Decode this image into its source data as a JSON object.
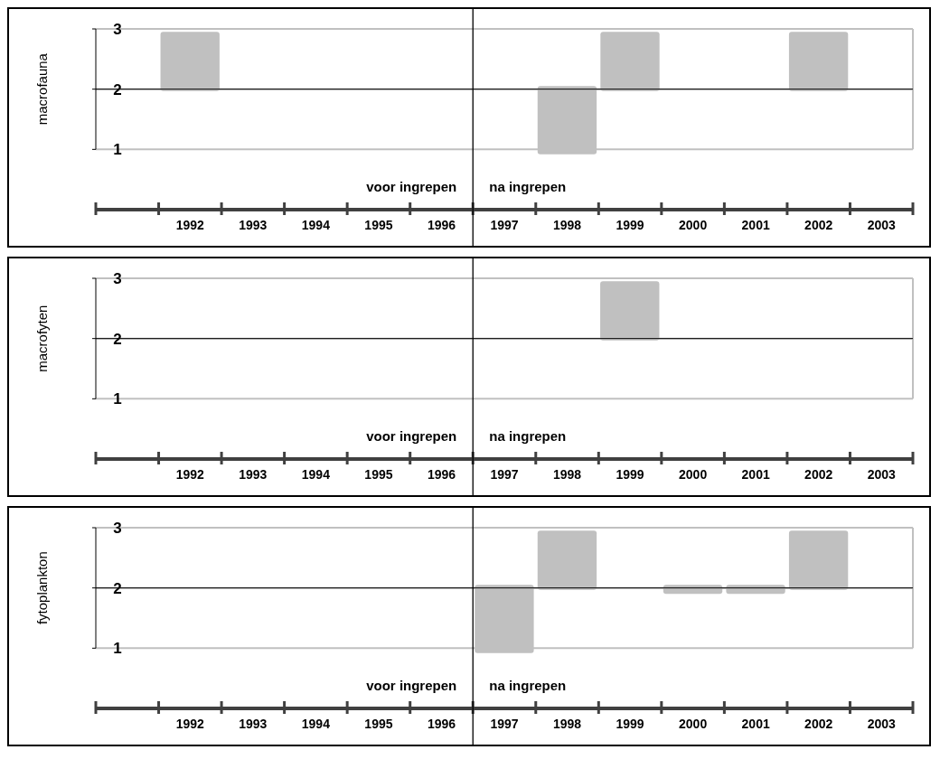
{
  "chart_data": [
    {
      "type": "bar",
      "ylabel": "macrofauna",
      "x": [
        1992,
        1998,
        1999,
        2002
      ],
      "values": [
        0.98,
        1.13,
        0.98,
        0.98
      ],
      "base": [
        1.97,
        0.92,
        1.97,
        1.97
      ],
      "color": "#c0c0c0",
      "xlim": [
        1990.5,
        2003.5
      ],
      "xticks": [
        {
          "value": 1990.5,
          "label": null
        },
        {
          "value": 1991.5,
          "label": null
        },
        {
          "value": 1992.5,
          "label": null
        },
        {
          "value": 1993.5,
          "label": null
        },
        {
          "value": 1994.5,
          "label": null
        },
        {
          "value": 1995.5,
          "label": null
        },
        {
          "value": 1996.5,
          "label": null
        },
        {
          "value": 1997.5,
          "label": null
        },
        {
          "value": 1998.5,
          "label": null
        },
        {
          "value": 1999.5,
          "label": null
        },
        {
          "value": 2000.5,
          "label": null
        },
        {
          "value": 2001.5,
          "label": null
        },
        {
          "value": 2002.5,
          "label": null
        },
        {
          "value": 2003.5,
          "label": null
        },
        1992,
        1993,
        1994,
        1995,
        1996,
        1997,
        1998,
        1999,
        2000,
        2001,
        2002,
        2003
      ],
      "ylim": [
        0,
        3
      ],
      "yticks": [
        1,
        2,
        3
      ],
      "grid": "y",
      "ref_lines": [
        {
          "axis": "x",
          "value": 1996.5,
          "color": "#000000"
        },
        {
          "axis": "y",
          "value": 2,
          "color": "#000000"
        }
      ],
      "annotations": [
        "voor ingrepen",
        "na ingrepen"
      ]
    },
    {
      "type": "bar",
      "ylabel": "macrofyten",
      "x": [
        1999
      ],
      "values": [
        0.98
      ],
      "base": [
        1.97
      ],
      "color": "#c0c0c0",
      "xlim": [
        1990.5,
        2003.5
      ],
      "xticks": [
        {
          "value": 1990.5,
          "label": null
        },
        {
          "value": 1991.5,
          "label": null
        },
        {
          "value": 1992.5,
          "label": null
        },
        {
          "value": 1993.5,
          "label": null
        },
        {
          "value": 1994.5,
          "label": null
        },
        {
          "value": 1995.5,
          "label": null
        },
        {
          "value": 1996.5,
          "label": null
        },
        {
          "value": 1997.5,
          "label": null
        },
        {
          "value": 1998.5,
          "label": null
        },
        {
          "value": 1999.5,
          "label": null
        },
        {
          "value": 2000.5,
          "label": null
        },
        {
          "value": 2001.5,
          "label": null
        },
        {
          "value": 2002.5,
          "label": null
        },
        {
          "value": 2003.5,
          "label": null
        },
        1992,
        1993,
        1994,
        1995,
        1996,
        1997,
        1998,
        1999,
        2000,
        2001,
        2002,
        2003
      ],
      "ylim": [
        0,
        3
      ],
      "yticks": [
        1,
        2,
        3
      ],
      "grid": "y",
      "ref_lines": [
        {
          "axis": "x",
          "value": 1996.5,
          "color": "#000000"
        },
        {
          "axis": "y",
          "value": 2,
          "color": "#000000"
        }
      ],
      "annotations": [
        "voor ingrepen",
        "na ingrepen"
      ]
    },
    {
      "type": "bar",
      "ylabel": "fytoplankton",
      "x": [
        1997,
        1998,
        2000,
        2001,
        2002
      ],
      "values": [
        1.13,
        0.98,
        0.15,
        0.15,
        0.98
      ],
      "base": [
        0.92,
        1.97,
        1.9,
        1.9,
        1.97
      ],
      "color": "#c0c0c0",
      "xlim": [
        1990.5,
        2003.5
      ],
      "xticks": [
        {
          "value": 1990.5,
          "label": null
        },
        {
          "value": 1991.5,
          "label": null
        },
        {
          "value": 1992.5,
          "label": null
        },
        {
          "value": 1993.5,
          "label": null
        },
        {
          "value": 1994.5,
          "label": null
        },
        {
          "value": 1995.5,
          "label": null
        },
        {
          "value": 1996.5,
          "label": null
        },
        {
          "value": 1997.5,
          "label": null
        },
        {
          "value": 1998.5,
          "label": null
        },
        {
          "value": 1999.5,
          "label": null
        },
        {
          "value": 2000.5,
          "label": null
        },
        {
          "value": 2001.5,
          "label": null
        },
        {
          "value": 2002.5,
          "label": null
        },
        {
          "value": 2003.5,
          "label": null
        },
        1992,
        1993,
        1994,
        1995,
        1996,
        1997,
        1998,
        1999,
        2000,
        2001,
        2002,
        2003
      ],
      "ylim": [
        0,
        3
      ],
      "yticks": [
        1,
        2,
        3
      ],
      "grid": "y",
      "ref_lines": [
        {
          "axis": "x",
          "value": 1996.5,
          "color": "#000000"
        },
        {
          "axis": "y",
          "value": 2,
          "color": "#000000"
        }
      ],
      "annotations": [
        "voor ingrepen",
        "na ingrepen"
      ]
    }
  ]
}
